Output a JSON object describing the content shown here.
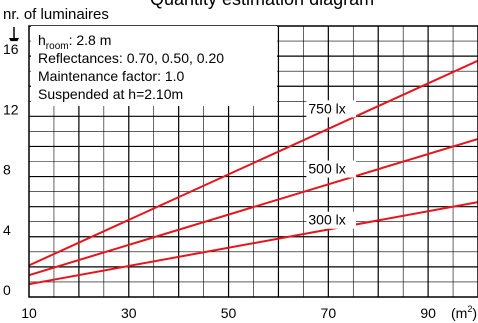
{
  "chart_data": {
    "type": "line",
    "title": "Quantity estimation diagram",
    "ylabel": "nr. of luminaires",
    "xlabel_unit_base": "(m",
    "xlabel_unit_exp": "2",
    "xlabel_unit_close": ")",
    "xlim": [
      10,
      100
    ],
    "ylim": [
      0,
      18
    ],
    "x_ticks": [
      10,
      30,
      50,
      70,
      90
    ],
    "y_ticks": [
      0,
      4,
      8,
      12,
      16
    ],
    "grid": true,
    "info": {
      "room_prefix": "h",
      "room_sub": "room",
      "room_value": ": 2.8 m",
      "reflectances": "Reflectances: 0.70, 0.50, 0.20",
      "maintenance": "Maintenance factor: 1.0",
      "suspended": "Suspended at h=2.10m"
    },
    "series_color": "#e8141c",
    "series": [
      {
        "name": "750 lx",
        "x": [
          10,
          100
        ],
        "y": [
          2.1,
          15.7
        ],
        "label_x": 66,
        "label_y": 12.2
      },
      {
        "name": "500 lx",
        "x": [
          10,
          100
        ],
        "y": [
          1.45,
          10.5
        ],
        "label_x": 66,
        "label_y": 8.2
      },
      {
        "name": "300 lx",
        "x": [
          10,
          100
        ],
        "y": [
          0.85,
          6.3
        ],
        "label_x": 66,
        "label_y": 4.8
      }
    ]
  }
}
